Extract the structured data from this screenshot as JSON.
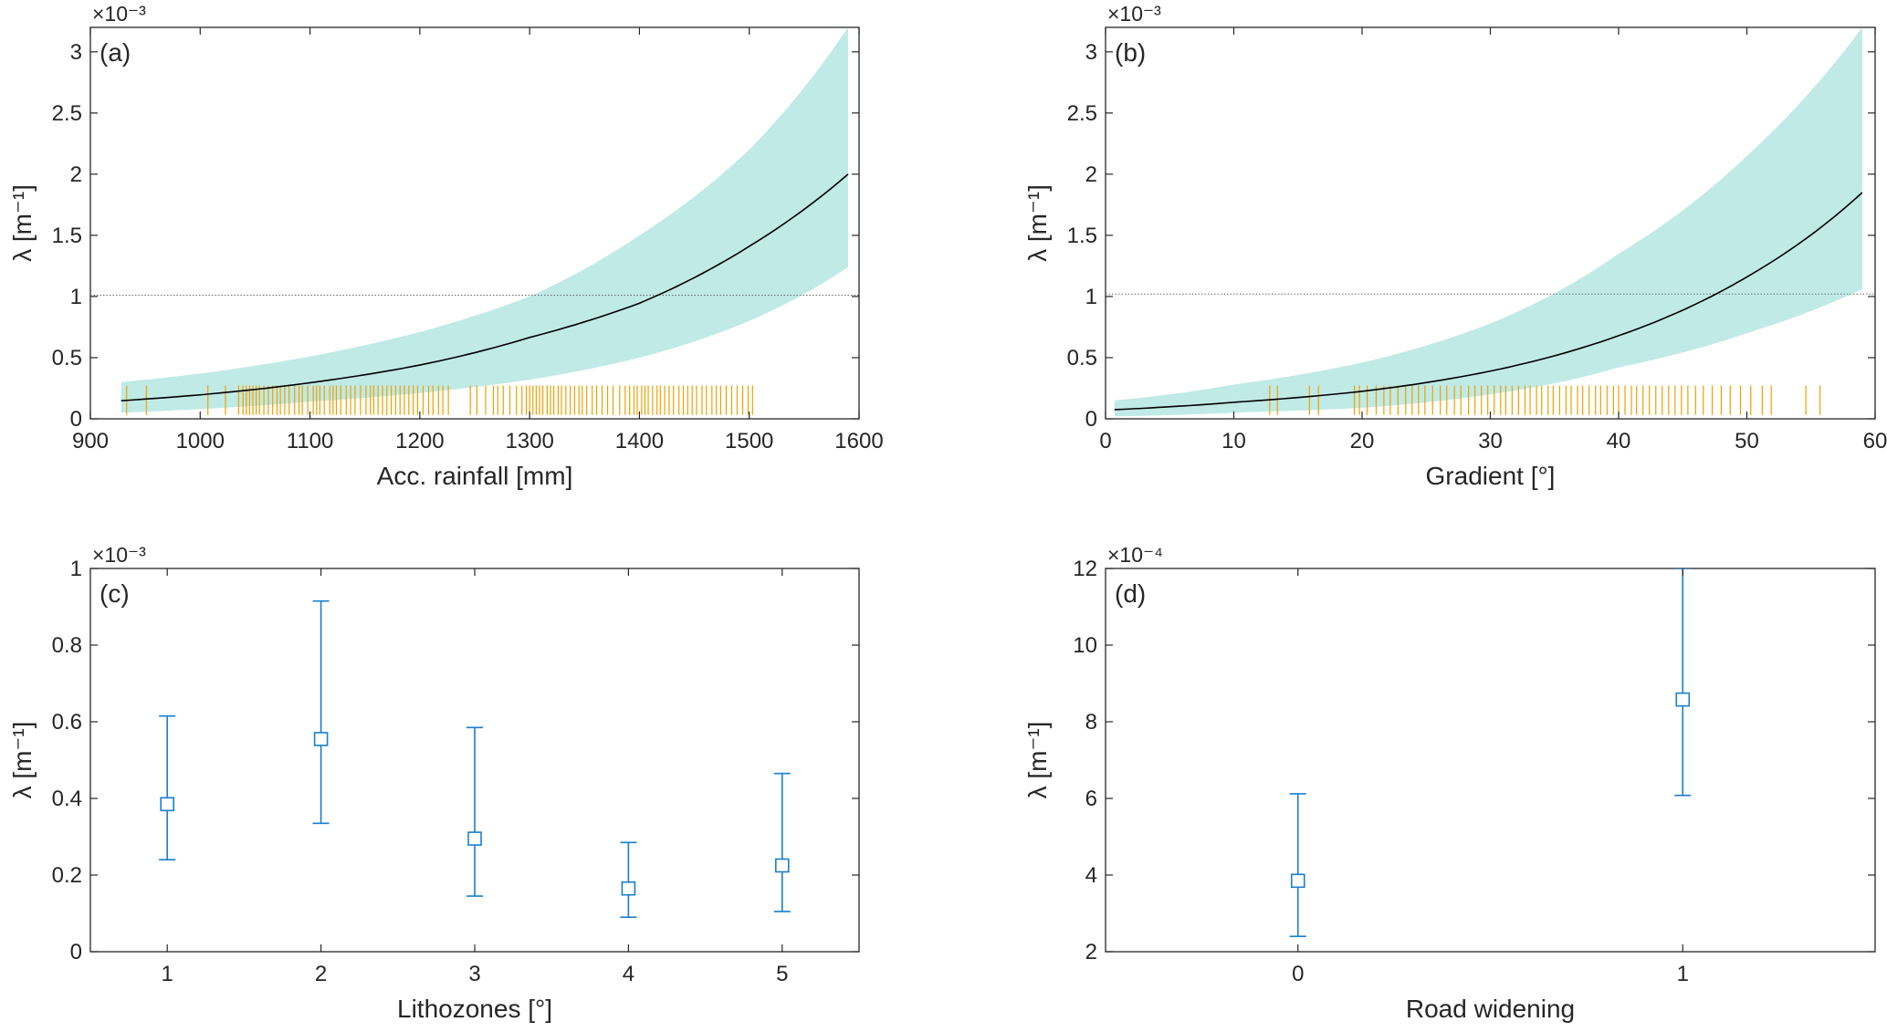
{
  "chart_data": [
    {
      "panel": "(a)",
      "type": "line",
      "xlabel": "Acc. rainfall [mm]",
      "ylabel": "λ [m⁻¹]",
      "y_exponent": "×10⁻³",
      "xlim": [
        900,
        1600
      ],
      "ylim": [
        0,
        3.2
      ],
      "xticks": [
        "900",
        "1000",
        "1100",
        "1200",
        "1300",
        "1400",
        "1500",
        "1600"
      ],
      "yticks": [
        "0",
        "0.5",
        "1",
        "1.5",
        "2",
        "2.5",
        "3"
      ],
      "reference_line_y": 1.01,
      "curve": {
        "x": [
          928,
          1000,
          1100,
          1200,
          1300,
          1400,
          1500,
          1590
        ],
        "mean": [
          0.148,
          0.196,
          0.295,
          0.44,
          0.665,
          0.945,
          1.41,
          2.0
        ],
        "lower": [
          0.05,
          0.08,
          0.14,
          0.21,
          0.32,
          0.5,
          0.8,
          1.24
        ],
        "upper": [
          0.3,
          0.37,
          0.51,
          0.71,
          1.0,
          1.5,
          2.2,
          3.2
        ]
      },
      "rug": [
        933,
        951,
        1007,
        1023,
        1035,
        1039,
        1042,
        1045,
        1048,
        1051,
        1054,
        1058,
        1062,
        1066,
        1070,
        1073,
        1077,
        1081,
        1086,
        1090,
        1093,
        1098,
        1103,
        1106,
        1109,
        1113,
        1118,
        1121,
        1124,
        1128,
        1133,
        1137,
        1141,
        1146,
        1151,
        1155,
        1158,
        1162,
        1166,
        1170,
        1174,
        1178,
        1182,
        1186,
        1190,
        1194,
        1198,
        1203,
        1208,
        1212,
        1217,
        1221,
        1226,
        1246,
        1252,
        1260,
        1267,
        1271,
        1276,
        1282,
        1288,
        1293,
        1297,
        1300,
        1303,
        1306,
        1309,
        1312,
        1316,
        1319,
        1322,
        1326,
        1329,
        1333,
        1337,
        1341,
        1345,
        1348,
        1352,
        1357,
        1361,
        1366,
        1371,
        1376,
        1382,
        1387,
        1391,
        1395,
        1398,
        1402,
        1405,
        1408,
        1412,
        1416,
        1419,
        1423,
        1427,
        1431,
        1436,
        1440,
        1444,
        1448,
        1452,
        1457,
        1461,
        1466,
        1470,
        1474,
        1479,
        1484,
        1489,
        1494,
        1499,
        1503
      ]
    },
    {
      "panel": "(b)",
      "type": "line",
      "xlabel": "Gradient [°]",
      "ylabel": "λ [m⁻¹]",
      "y_exponent": "×10⁻³",
      "xlim": [
        0,
        60
      ],
      "ylim": [
        0,
        3.2
      ],
      "xticks": [
        "0",
        "10",
        "20",
        "30",
        "40",
        "50",
        "60"
      ],
      "yticks": [
        "0",
        "0.5",
        "1",
        "1.5",
        "2",
        "2.5",
        "3"
      ],
      "reference_line_y": 1.02,
      "curve": {
        "x": [
          0.7,
          10,
          20,
          30,
          40,
          50,
          59
        ],
        "mean": [
          0.075,
          0.135,
          0.225,
          0.39,
          0.68,
          1.16,
          1.85
        ],
        "lower": [
          0.02,
          0.05,
          0.09,
          0.2,
          0.42,
          0.7,
          1.06
        ],
        "upper": [
          0.15,
          0.28,
          0.46,
          0.78,
          1.35,
          2.15,
          3.2
        ]
      },
      "rug": [
        12.8,
        13.4,
        15.9,
        16.6,
        19.4,
        19.8,
        20.4,
        21.1,
        21.7,
        22.2,
        22.8,
        23.4,
        23.9,
        24.4,
        24.9,
        25.5,
        26.1,
        26.6,
        27.2,
        27.7,
        28.3,
        28.8,
        29.3,
        29.8,
        30.3,
        30.8,
        31.2,
        31.7,
        32.2,
        32.7,
        33.1,
        33.6,
        34.0,
        34.5,
        34.9,
        35.4,
        35.9,
        36.3,
        36.8,
        37.2,
        37.7,
        38.2,
        38.6,
        39.1,
        39.6,
        40.0,
        40.5,
        41.0,
        41.4,
        41.9,
        42.4,
        42.9,
        43.4,
        43.9,
        44.4,
        44.9,
        45.4,
        46.0,
        46.6,
        47.3,
        48.0,
        48.7,
        49.5,
        50.3,
        51.2,
        51.9,
        54.6,
        55.7
      ]
    },
    {
      "panel": "(c)",
      "type": "errorbar",
      "xlabel": "Lithozones [°]",
      "ylabel": "λ [m⁻¹]",
      "y_exponent": "×10⁻³",
      "xlim": [
        0.5,
        5.5
      ],
      "ylim": [
        0,
        1
      ],
      "xticks": [
        "1",
        "2",
        "3",
        "4",
        "5"
      ],
      "yticks": [
        "0",
        "0.2",
        "0.4",
        "0.6",
        "0.8",
        "1"
      ],
      "points": [
        {
          "x": 1,
          "y": 0.385,
          "lower": 0.24,
          "upper": 0.615
        },
        {
          "x": 2,
          "y": 0.555,
          "lower": 0.335,
          "upper": 0.915
        },
        {
          "x": 3,
          "y": 0.295,
          "lower": 0.145,
          "upper": 0.585
        },
        {
          "x": 4,
          "y": 0.165,
          "lower": 0.09,
          "upper": 0.285
        },
        {
          "x": 5,
          "y": 0.225,
          "lower": 0.105,
          "upper": 0.465
        }
      ]
    },
    {
      "panel": "(d)",
      "type": "errorbar",
      "xlabel": "Road widening",
      "ylabel": "λ [m⁻¹]",
      "y_exponent": "×10⁻⁴",
      "xlim": [
        -0.5,
        1.5
      ],
      "ylim": [
        2,
        12
      ],
      "xticks": [
        "0",
        "1"
      ],
      "yticks": [
        "2",
        "4",
        "6",
        "8",
        "10",
        "12"
      ],
      "points": [
        {
          "x": 0,
          "y": 3.85,
          "lower": 2.4,
          "upper": 6.12
        },
        {
          "x": 1,
          "y": 8.58,
          "lower": 6.08,
          "upper": 12.0
        }
      ]
    }
  ],
  "colors": {
    "band": "#c0eae6",
    "mean_line": "#000000",
    "rug": "#f0a000",
    "errorbar": "#1a7fce",
    "axis": "#262626",
    "reference_line": "#6e6e6e"
  }
}
